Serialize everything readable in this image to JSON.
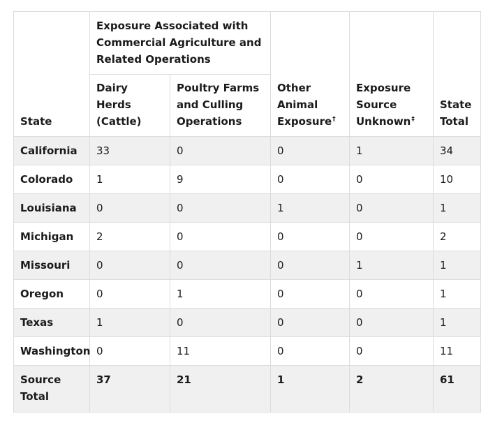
{
  "header": {
    "state_label": "State",
    "group_label": "Exposure Associated with Commercial Agriculture and Related Operations",
    "dairy_label": "Dairy Herds (Cattle)",
    "poultry_label": "Poultry Farms and Culling Operations",
    "other_label": "Other Animal Exposure",
    "other_mark": "†",
    "unknown_label": "Exposure Source Unknown",
    "unknown_mark": "‡",
    "total_label": "State Total"
  },
  "rows": [
    {
      "state": "California",
      "dairy": "33",
      "poultry": "0",
      "other": "0",
      "unknown": "1",
      "total": "34"
    },
    {
      "state": "Colorado",
      "dairy": "1",
      "poultry": "9",
      "other": "0",
      "unknown": "0",
      "total": "10"
    },
    {
      "state": "Louisiana",
      "dairy": "0",
      "poultry": "0",
      "other": "1",
      "unknown": "0",
      "total": "1"
    },
    {
      "state": "Michigan",
      "dairy": "2",
      "poultry": "0",
      "other": "0",
      "unknown": "0",
      "total": "2"
    },
    {
      "state": "Missouri",
      "dairy": "0",
      "poultry": "0",
      "other": "0",
      "unknown": "1",
      "total": "1"
    },
    {
      "state": "Oregon",
      "dairy": "0",
      "poultry": "1",
      "other": "0",
      "unknown": "0",
      "total": "1"
    },
    {
      "state": "Texas",
      "dairy": "1",
      "poultry": "0",
      "other": "0",
      "unknown": "0",
      "total": "1"
    },
    {
      "state": "Washington",
      "dairy": "0",
      "poultry": "11",
      "other": "0",
      "unknown": "0",
      "total": "11"
    }
  ],
  "totals": {
    "label": "Source Total",
    "dairy": "37",
    "poultry": "21",
    "other": "1",
    "unknown": "2",
    "total": "61"
  }
}
